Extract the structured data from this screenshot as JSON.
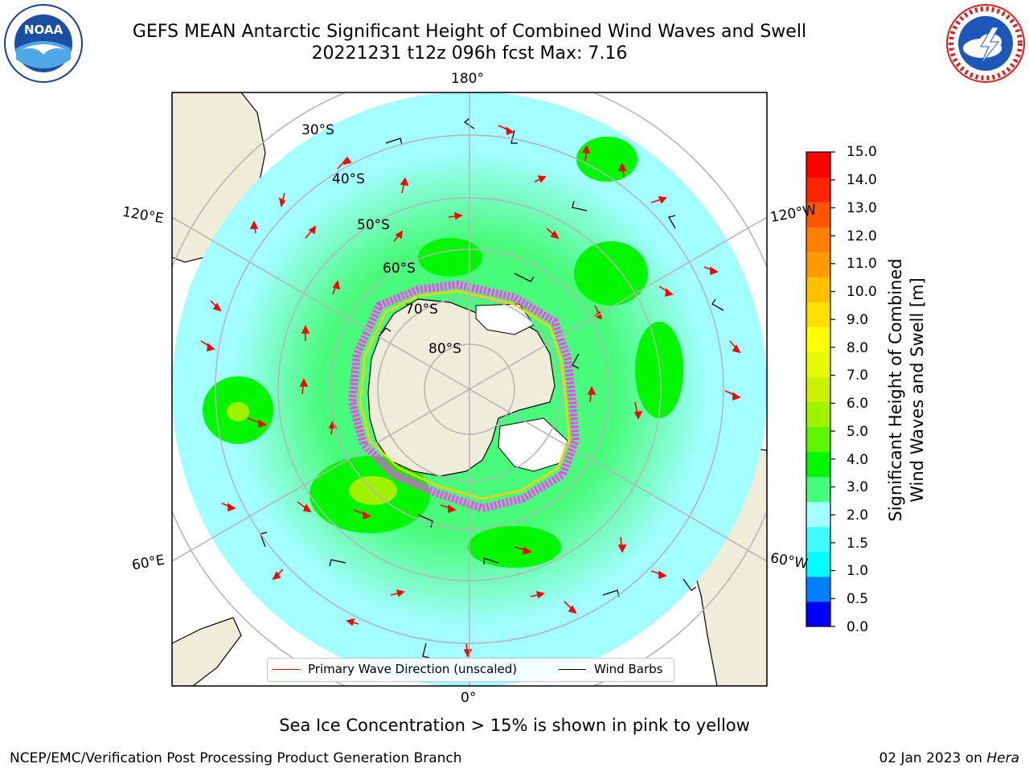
{
  "header": {
    "title_line1": "GEFS MEAN Antarctic Significant Height of Combined Wind Waves and Swell",
    "title_line2": "20221231 t12z 096h fcst   Max: 7.16"
  },
  "logos": {
    "left": "noaa-logo",
    "right": "nws-logo"
  },
  "map": {
    "projection": "south-polar-stereographic",
    "latitude_labels": [
      "30°S",
      "40°S",
      "50°S",
      "60°S",
      "70°S",
      "80°S"
    ],
    "longitude_labels": {
      "top": "180°",
      "upper_left": "120°E",
      "upper_right": "120°W",
      "lower_left": "60°E",
      "lower_right": "60°W",
      "bottom": "0°"
    },
    "colors": {
      "land": "#efedd9",
      "sea_lowest": "#a2feff",
      "sea_mid": "#49fb7b",
      "sea_high": "#00f700",
      "peak": "#e6fa00",
      "ice_pink": "#ff40ff",
      "ice_yellow": "#ffd000",
      "wave_arrow": "#ff0000",
      "wind_barb": "#000000"
    }
  },
  "colorbar": {
    "label": "Significant Height of Combined Wind Waves and Swell [m]",
    "label_line1": "Significant Height of Combined",
    "label_line2": "Wind Waves and Swell [m]",
    "ticks": [
      "15.0",
      "14.0",
      "13.0",
      "12.0",
      "11.0",
      "10.0",
      "9.0",
      "8.0",
      "7.0",
      "6.0",
      "5.0",
      "4.0",
      "3.0",
      "2.0",
      "1.5",
      "1.0",
      "0.5",
      "0.0"
    ],
    "colors_bottom_to_top": [
      "#0000ff",
      "#0080ff",
      "#00ffff",
      "#40fcff",
      "#a2feff",
      "#49fb7b",
      "#00f700",
      "#5ef500",
      "#a0f200",
      "#ccf000",
      "#e6fa00",
      "#ffff00",
      "#ffe000",
      "#ffc000",
      "#ff9a00",
      "#ff8000",
      "#ff5500",
      "#ff2400",
      "#ff0000"
    ]
  },
  "legend": {
    "primary_wave": "Primary Wave Direction (unscaled)",
    "wind_barbs": "Wind Barbs"
  },
  "note": "Sea Ice Concentration > 15% is shown in pink to yellow",
  "footer": {
    "left": "NCEP/EMC/Verification Post Processing Product Generation Branch",
    "date": "02 Jan 2023 on ",
    "host": "Hera"
  }
}
